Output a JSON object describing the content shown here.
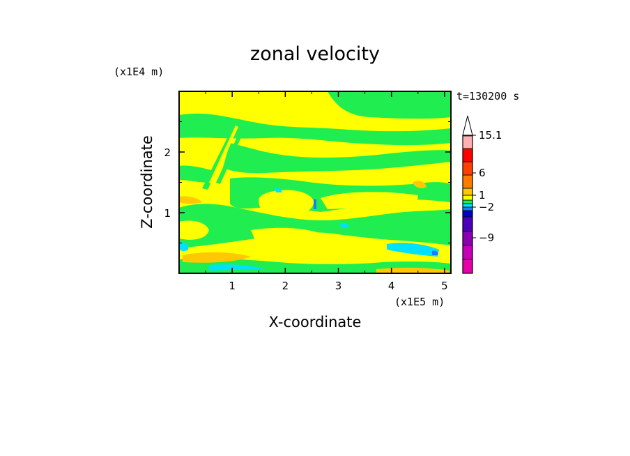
{
  "chart_data": {
    "type": "heatmap",
    "title": "zonal velocity",
    "xlabel": "X-coordinate",
    "ylabel": "Z-coordinate",
    "x_unit_label": "(x1E5 m)",
    "y_unit_label": "(x1E4 m)",
    "time_label": "t=130200 s",
    "xlim": [
      0,
      5.12
    ],
    "ylim": [
      0,
      3.0
    ],
    "x_ticks": [
      "1",
      "2",
      "3",
      "4",
      "5"
    ],
    "y_ticks": [
      "1",
      "2"
    ],
    "colorbar": {
      "labeled_levels": [
        "15.1",
        "6",
        "1",
        "-2",
        "-9"
      ],
      "label_text": [
        "15.1",
        "6",
        "1",
        "−2",
        "−9"
      ],
      "levels_bottom_to_top": [
        -15,
        -12,
        -9,
        -6,
        -3,
        -2,
        -1,
        0,
        1,
        2,
        3,
        6,
        9,
        12,
        15.1
      ],
      "colors_bottom_to_top": [
        "#e600a8",
        "#c400b8",
        "#8a00b0",
        "#4a00b8",
        "#0000c8",
        "#1e7bff",
        "#00e0ff",
        "#20ee50",
        "#ffff00",
        "#ffc800",
        "#ff7a00",
        "#ff4000",
        "#ff0000",
        "#ffb0b0",
        "#ffc4c4"
      ],
      "extend_max": true
    },
    "dominant_colors": {
      "positive_small": "#ffff00",
      "near_zero": "#20ee50",
      "negative_small": "#00e0ff",
      "positive_medium": "#ffc800",
      "negative_medium": "#1e7bff"
    }
  }
}
